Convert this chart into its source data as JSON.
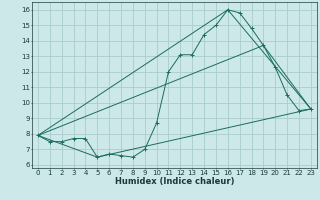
{
  "title": "",
  "xlabel": "Humidex (Indice chaleur)",
  "bg_color": "#cce8e8",
  "grid_color": "#aacccc",
  "line_color": "#1a6b60",
  "xlim": [
    -0.5,
    23.5
  ],
  "ylim": [
    5.8,
    16.5
  ],
  "xticks": [
    0,
    1,
    2,
    3,
    4,
    5,
    6,
    7,
    8,
    9,
    10,
    11,
    12,
    13,
    14,
    15,
    16,
    17,
    18,
    19,
    20,
    21,
    22,
    23
  ],
  "yticks": [
    6,
    7,
    8,
    9,
    10,
    11,
    12,
    13,
    14,
    15,
    16
  ],
  "series1_x": [
    0,
    1,
    2,
    3,
    4,
    5,
    6,
    7,
    8,
    9,
    10,
    11,
    12,
    13,
    14,
    15,
    16,
    17,
    18,
    19,
    20,
    21,
    22,
    23
  ],
  "series1_y": [
    7.9,
    7.5,
    7.5,
    7.7,
    7.7,
    6.5,
    6.7,
    6.6,
    6.5,
    7.0,
    8.7,
    12.0,
    13.1,
    13.1,
    14.4,
    15.0,
    16.0,
    15.8,
    14.8,
    13.7,
    12.3,
    10.5,
    9.5,
    9.6
  ],
  "series2_x": [
    0,
    5,
    23
  ],
  "series2_y": [
    7.9,
    6.5,
    9.6
  ],
  "series3_x": [
    0,
    16,
    23
  ],
  "series3_y": [
    7.9,
    16.0,
    9.6
  ],
  "series4_x": [
    0,
    19,
    23
  ],
  "series4_y": [
    7.9,
    13.7,
    9.6
  ]
}
